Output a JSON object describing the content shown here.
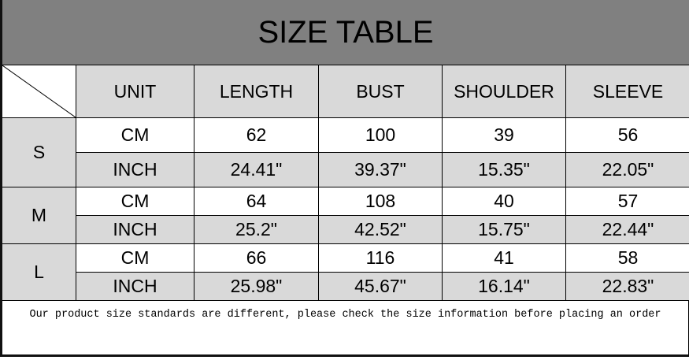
{
  "title": "SIZE TABLE",
  "headers": [
    "UNIT",
    "LENGTH",
    "BUST",
    "SHOULDER",
    "SLEEVE"
  ],
  "sizes": [
    {
      "size": "S",
      "cm": {
        "unit": "CM",
        "values": [
          "62",
          "100",
          "39",
          "56"
        ]
      },
      "inch": {
        "unit": "INCH",
        "values": [
          "24.41\"",
          "39.37\"",
          "15.35\"",
          "22.05\""
        ]
      }
    },
    {
      "size": "M",
      "cm": {
        "unit": "CM",
        "values": [
          "64",
          "108",
          "40",
          "57"
        ]
      },
      "inch": {
        "unit": "INCH",
        "values": [
          "25.2\"",
          "42.52\"",
          "15.75\"",
          "22.44\""
        ]
      }
    },
    {
      "size": "L",
      "cm": {
        "unit": "CM",
        "values": [
          "66",
          "116",
          "41",
          "58"
        ]
      },
      "inch": {
        "unit": "INCH",
        "values": [
          "25.98\"",
          "45.67\"",
          "16.14\"",
          "22.83\""
        ]
      }
    }
  ],
  "note": "Our product size standards are different, please check the size information before placing an order",
  "colors": {
    "title_band": "#808080",
    "shaded_cell": "#d9d9d9"
  }
}
